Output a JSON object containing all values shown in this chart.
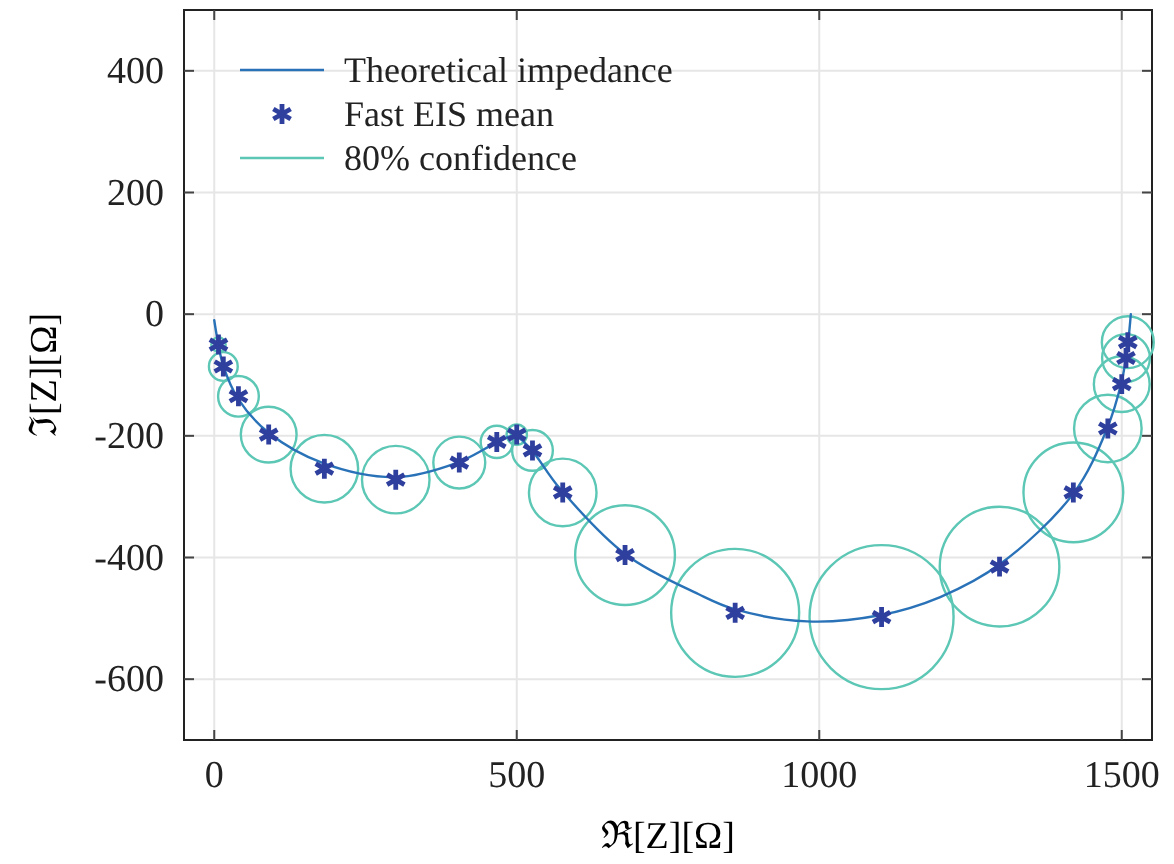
{
  "chart_data": {
    "type": "line",
    "xlabel": "ℜ[Z][Ω]",
    "ylabel": "ℑ[Z][Ω]",
    "xlim": [
      -50,
      1550
    ],
    "ylim": [
      -700,
      500
    ],
    "xticks": [
      0,
      500,
      1000,
      1500
    ],
    "yticks": [
      -600,
      -400,
      -200,
      0,
      200,
      400
    ],
    "grid": true,
    "legend": "top left",
    "series": [
      {
        "name": "Theoretical impedance",
        "color": "#2a72b8",
        "x": [
          0,
          5,
          15,
          40,
          90,
          180,
          300,
          400,
          460,
          495,
          520,
          570,
          680,
          800,
          860,
          980,
          1100,
          1200,
          1300,
          1420,
          1475,
          1500,
          1510,
          1515
        ],
        "values": [
          -10,
          -40,
          -85,
          -140,
          -195,
          -245,
          -268,
          -245,
          -215,
          -200,
          -218,
          -285,
          -395,
          -460,
          -485,
          -505,
          -495,
          -465,
          -410,
          -295,
          -190,
          -110,
          -50,
          0
        ]
      },
      {
        "type": "scatter",
        "name": "Fast EIS mean",
        "color": "#2e3f9e",
        "marker": "cross",
        "x": [
          7,
          15,
          40,
          90,
          182,
          300,
          405,
          467,
          500,
          526,
          576,
          679,
          861,
          1103,
          1298,
          1420,
          1477,
          1500,
          1507,
          1510
        ],
        "values": [
          -50,
          -86,
          -135,
          -198,
          -254,
          -272,
          -244,
          -210,
          -198,
          -224,
          -293,
          -396,
          -491,
          -498,
          -415,
          -293,
          -188,
          -115,
          -72,
          -46
        ]
      },
      {
        "type": "bubble",
        "name": "80% confidence",
        "color": "#5cc7b5",
        "x": [
          7,
          15,
          40,
          90,
          182,
          300,
          405,
          467,
          500,
          526,
          576,
          679,
          861,
          1103,
          1298,
          1420,
          1477,
          1500,
          1507,
          1510
        ],
        "values": [
          -50,
          -86,
          -135,
          -198,
          -254,
          -272,
          -244,
          -210,
          -198,
          -224,
          -293,
          -396,
          -491,
          -498,
          -415,
          -293,
          -188,
          -115,
          -72,
          -46
        ],
        "sizes": [
          0.01,
          0.04,
          0.08,
          0.15,
          0.22,
          0.22,
          0.13,
          0.05,
          0.02,
          0.08,
          0.22,
          0.48,
          0.79,
          1,
          0.69,
          0.48,
          0.22,
          0.15,
          0.11,
          0.13
        ]
      }
    ]
  }
}
